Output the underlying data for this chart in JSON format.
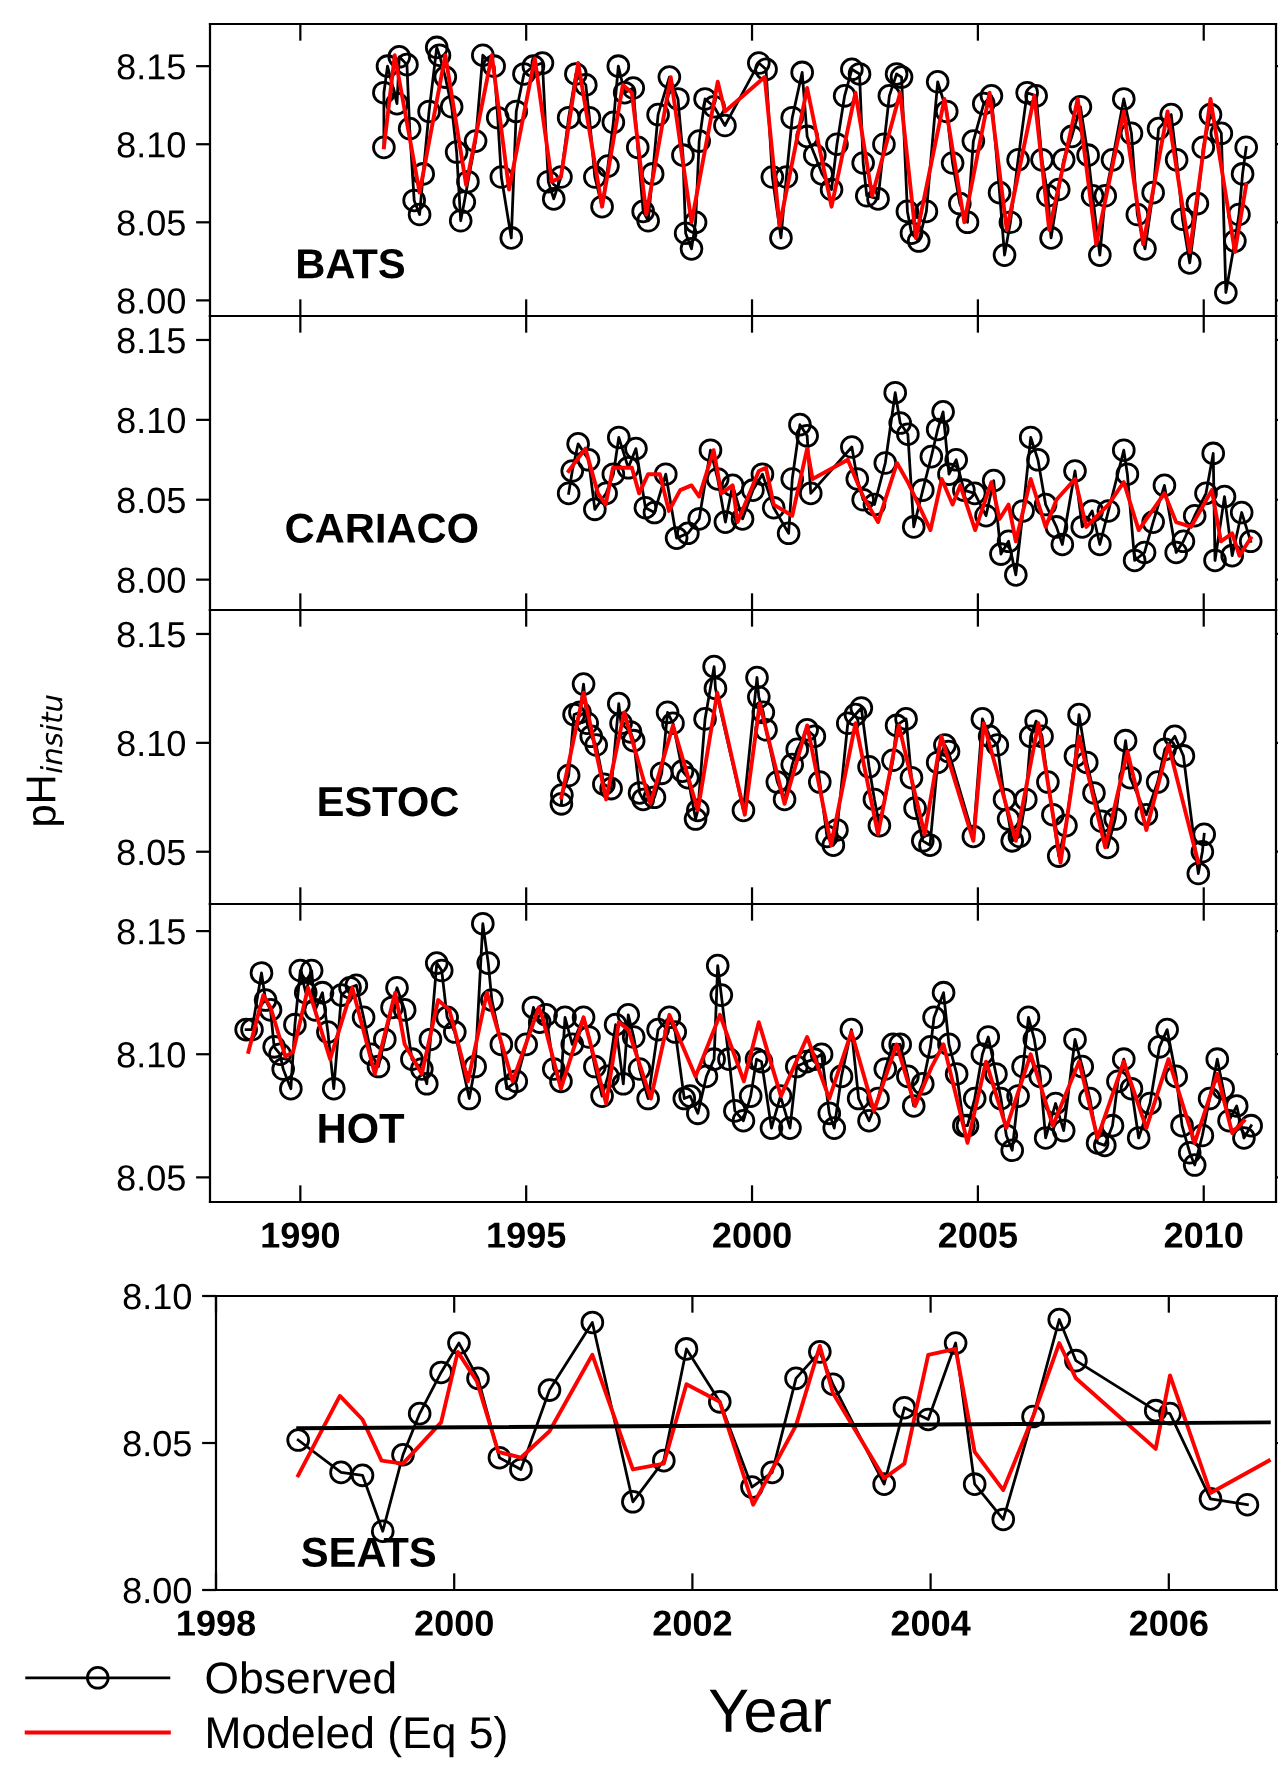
{
  "chart_data": [
    {
      "type": "line",
      "annotations": [
        "BATS"
      ],
      "xlim": [
        1988,
        2011.6
      ],
      "xticks": [
        1990,
        1995,
        2000,
        2005,
        2010
      ],
      "ylim": [
        7.99,
        8.177
      ],
      "yticks": [
        {
          "value": 8.0,
          "label": "8.00"
        },
        {
          "value": 8.05,
          "label": "8.05"
        },
        {
          "value": 8.1,
          "label": "8.10"
        },
        {
          "value": 8.15,
          "label": "8.15"
        }
      ],
      "tick_labels": "y",
      "series": [
        {
          "color": "#000000",
          "marker": "circle",
          "x": [
            1991.85,
            1991.85,
            1991.93,
            1992.14,
            1992.19,
            1992.36,
            1992.42,
            1992.52,
            1992.64,
            1992.72,
            1992.85,
            1993.02,
            1993.08,
            1993.21,
            1993.35,
            1993.46,
            1993.55,
            1993.63,
            1993.71,
            1993.88,
            1994.04,
            1994.29,
            1994.37,
            1994.45,
            1994.67,
            1994.78,
            1994.95,
            1995.16,
            1995.36,
            1995.49,
            1995.61,
            1995.77,
            1995.94,
            1996.1,
            1996.32,
            1996.4,
            1996.52,
            1996.68,
            1996.81,
            1996.93,
            1997.04,
            1997.18,
            1997.37,
            1997.47,
            1997.59,
            1997.7,
            1997.8,
            1997.92,
            1998.17,
            1998.36,
            1998.47,
            1998.53,
            1998.66,
            1998.75,
            1998.83,
            1998.96,
            1999.16,
            1999.4,
            2000.15,
            2000.31,
            2000.45,
            2000.64,
            2000.76,
            2000.89,
            2001.11,
            2001.22,
            2001.39,
            2001.55,
            2001.76,
            2001.88,
            2002.05,
            2002.21,
            2002.38,
            2002.46,
            2002.54,
            2002.79,
            2002.92,
            2003.04,
            2003.2,
            2003.31,
            2003.44,
            2003.53,
            2003.69,
            2003.86,
            2004.11,
            2004.31,
            2004.44,
            2004.6,
            2004.77,
            2004.9,
            2005.13,
            2005.3,
            2005.48,
            2005.59,
            2005.72,
            2005.89,
            2006.09,
            2006.29,
            2006.42,
            2006.55,
            2006.62,
            2006.79,
            2006.9,
            2007.08,
            2007.27,
            2007.44,
            2007.54,
            2007.7,
            2007.82,
            2007.98,
            2008.23,
            2008.4,
            2008.53,
            2008.7,
            2008.88,
            2009.0,
            2009.28,
            2009.4,
            2009.53,
            2009.69,
            2009.86,
            2009.99,
            2010.15,
            2010.39,
            2010.49,
            2010.69,
            2010.78,
            2010.86,
            2010.94
          ],
          "values": [
            8.098,
            8.133,
            8.15,
            8.126,
            8.156,
            8.151,
            8.11,
            8.064,
            8.055,
            8.081,
            8.121,
            8.162,
            8.157,
            8.143,
            8.124,
            8.095,
            8.051,
            8.063,
            8.076,
            8.102,
            8.157,
            8.15,
            8.117,
            8.079,
            8.04,
            8.121,
            8.145,
            8.15,
            8.152,
            8.076,
            8.065,
            8.079,
            8.117,
            8.145,
            8.138,
            8.117,
            8.079,
            8.06,
            8.086,
            8.114,
            8.15,
            8.133,
            8.136,
            8.098,
            8.057,
            8.051,
            8.081,
            8.119,
            8.143,
            8.129,
            8.093,
            8.043,
            8.033,
            8.05,
            8.102,
            8.129,
            8.124,
            8.112,
            8.152,
            8.148,
            8.079,
            8.04,
            8.079,
            8.117,
            8.146,
            8.105,
            8.093,
            8.081,
            8.071,
            8.1,
            8.131,
            8.148,
            8.145,
            8.088,
            8.067,
            8.065,
            8.1,
            8.131,
            8.145,
            8.143,
            8.057,
            8.043,
            8.038,
            8.057,
            8.14,
            8.121,
            8.088,
            8.062,
            8.05,
            8.102,
            8.126,
            8.131,
            8.069,
            8.029,
            8.05,
            8.09,
            8.133,
            8.131,
            8.09,
            8.067,
            8.04,
            8.071,
            8.09,
            8.105,
            8.124,
            8.093,
            8.067,
            8.029,
            8.067,
            8.09,
            8.129,
            8.107,
            8.055,
            8.033,
            8.069,
            8.11,
            8.119,
            8.09,
            8.052,
            8.024,
            8.062,
            8.098,
            8.119,
            8.107,
            8.005,
            8.038,
            8.055,
            8.081,
            8.098
          ]
        },
        {
          "color": "#ff0000",
          "x": [
            1991.85,
            1992.09,
            1992.64,
            1993.21,
            1993.67,
            1994.24,
            1994.62,
            1995.19,
            1995.57,
            1995.77,
            1996.15,
            1996.68,
            1997.14,
            1997.34,
            1997.66,
            1998.2,
            1998.66,
            1999.24,
            1999.4,
            2000.28,
            2000.61,
            2001.22,
            2001.76,
            2002.29,
            2002.66,
            2003.28,
            2003.63,
            2004.26,
            2004.7,
            2005.26,
            2005.64,
            2006.25,
            2006.58,
            2007.21,
            2007.62,
            2008.23,
            2008.66,
            2009.2,
            2009.69,
            2010.15,
            2010.69,
            2010.94
          ],
          "values": [
            8.098,
            8.157,
            8.069,
            8.157,
            8.074,
            8.157,
            8.071,
            8.155,
            8.076,
            8.079,
            8.152,
            8.06,
            8.138,
            8.133,
            8.055,
            8.143,
            8.05,
            8.14,
            8.121,
            8.143,
            8.048,
            8.136,
            8.06,
            8.133,
            8.067,
            8.133,
            8.04,
            8.129,
            8.05,
            8.133,
            8.045,
            8.131,
            8.045,
            8.129,
            8.036,
            8.121,
            8.036,
            8.121,
            8.031,
            8.129,
            8.031,
            8.074
          ]
        }
      ]
    },
    {
      "type": "line",
      "annotations": [
        "CARIACO"
      ],
      "xlim": [
        1988,
        2011.6
      ],
      "xticks": [
        1990,
        1995,
        2000,
        2005,
        2010
      ],
      "ylim": [
        7.981,
        8.165
      ],
      "yticks": [
        {
          "value": 8.0,
          "label": "8.00"
        },
        {
          "value": 8.05,
          "label": "8.05"
        },
        {
          "value": 8.1,
          "label": "8.10"
        },
        {
          "value": 8.15,
          "label": "8.15"
        }
      ],
      "tick_labels": "y",
      "series": [
        {
          "color": "#000000",
          "marker": "circle",
          "x": [
            1995.94,
            1996.02,
            1996.15,
            1996.38,
            1996.52,
            1996.77,
            1996.93,
            1997.05,
            1997.26,
            1997.43,
            1997.64,
            1997.84,
            1998.09,
            1998.33,
            1998.58,
            1998.83,
            1999.08,
            1999.24,
            1999.41,
            1999.57,
            1999.79,
            2000.02,
            2000.23,
            2000.48,
            2000.81,
            2000.89,
            2001.06,
            2001.22,
            2001.3,
            2002.21,
            2002.33,
            2002.46,
            2002.71,
            2002.95,
            2003.17,
            2003.28,
            2003.45,
            2003.58,
            2003.78,
            2003.97,
            2004.11,
            2004.23,
            2004.36,
            2004.52,
            2004.69,
            2004.93,
            2005.18,
            2005.35,
            2005.51,
            2005.68,
            2005.84,
            2006.0,
            2006.17,
            2006.33,
            2006.5,
            2006.74,
            2006.87,
            2007.15,
            2007.31,
            2007.53,
            2007.7,
            2007.89,
            2008.23,
            2008.31,
            2008.47,
            2008.69,
            2008.88,
            2009.13,
            2009.39,
            2009.55,
            2009.8,
            2010.05,
            2010.21,
            2010.25,
            2010.46,
            2010.63,
            2010.84,
            2011.04
          ],
          "values": [
            8.054,
            8.068,
            8.085,
            8.075,
            8.044,
            8.054,
            8.066,
            8.089,
            8.07,
            8.082,
            8.045,
            8.042,
            8.066,
            8.026,
            8.029,
            8.038,
            8.081,
            8.063,
            8.036,
            8.059,
            8.038,
            8.056,
            8.066,
            8.045,
            8.029,
            8.063,
            8.097,
            8.09,
            8.054,
            8.083,
            8.063,
            8.05,
            8.047,
            8.073,
            8.117,
            8.098,
            8.091,
            8.033,
            8.056,
            8.077,
            8.094,
            8.105,
            8.066,
            8.075,
            8.056,
            8.054,
            8.04,
            8.062,
            8.016,
            8.024,
            8.003,
            8.043,
            8.089,
            8.075,
            8.047,
            8.033,
            8.022,
            8.068,
            8.033,
            8.043,
            8.022,
            8.043,
            8.081,
            8.066,
            8.012,
            8.017,
            8.036,
            8.059,
            8.017,
            8.024,
            8.04,
            8.054,
            8.079,
            8.012,
            8.052,
            8.015,
            8.042,
            8.024
          ]
        },
        {
          "color": "#ff0000",
          "x": [
            1995.94,
            1996.31,
            1996.59,
            1996.76,
            1996.92,
            1997.34,
            1997.5,
            1997.7,
            1997.96,
            1998.16,
            1998.41,
            1998.66,
            1998.83,
            1999.15,
            1999.32,
            1999.57,
            1999.68,
            2000.15,
            2000.31,
            2000.48,
            2000.89,
            2001.22,
            2001.34,
            2002.12,
            2002.46,
            2002.79,
            2003.21,
            2003.45,
            2003.95,
            2004.2,
            2004.44,
            2004.61,
            2004.94,
            2005.3,
            2005.48,
            2005.68,
            2005.84,
            2006.17,
            2006.5,
            2006.74,
            2007.15,
            2007.4,
            2007.89,
            2008.23,
            2008.56,
            2009.13,
            2009.39,
            2009.72,
            2010.18,
            2010.38,
            2010.63,
            2010.79,
            2011.04
          ],
          "values": [
            8.068,
            8.082,
            8.054,
            8.047,
            8.07,
            8.07,
            8.054,
            8.066,
            8.066,
            8.043,
            8.056,
            8.059,
            8.052,
            8.081,
            8.054,
            8.059,
            8.036,
            8.068,
            8.07,
            8.047,
            8.04,
            8.082,
            8.063,
            8.075,
            8.052,
            8.036,
            8.073,
            8.061,
            8.031,
            8.063,
            8.047,
            8.059,
            8.031,
            8.061,
            8.038,
            8.047,
            8.024,
            8.063,
            8.033,
            8.05,
            8.063,
            8.033,
            8.047,
            8.061,
            8.031,
            8.054,
            8.036,
            8.033,
            8.056,
            8.024,
            8.029,
            8.015,
            8.026
          ]
        }
      ]
    },
    {
      "type": "line",
      "annotations": [
        "ESTOC"
      ],
      "ylabel": "pH$_{insitu}$",
      "xlim": [
        1988,
        2011.6
      ],
      "xticks": [
        1990,
        1995,
        2000,
        2005,
        2010
      ],
      "ylim": [
        8.026,
        8.161
      ],
      "yticks": [
        {
          "value": 8.05,
          "label": "8.05"
        },
        {
          "value": 8.1,
          "label": "8.10"
        },
        {
          "value": 8.15,
          "label": "8.15"
        }
      ],
      "tick_labels": "y",
      "series": [
        {
          "color": "#000000",
          "marker": "circle",
          "x": [
            1995.78,
            1995.79,
            1995.94,
            1996.06,
            1996.19,
            1996.27,
            1996.35,
            1996.44,
            1996.55,
            1996.72,
            1996.88,
            1997.05,
            1997.1,
            1997.31,
            1997.38,
            1997.51,
            1997.59,
            1997.84,
            1998.0,
            1998.13,
            1998.25,
            1998.46,
            1998.58,
            1998.75,
            1998.8,
            1998.96,
            1999.16,
            1999.19,
            1999.81,
            2000.11,
            2000.15,
            2000.25,
            2000.31,
            2000.56,
            2000.72,
            2000.89,
            2001.0,
            2001.22,
            2001.38,
            2001.5,
            2001.66,
            2001.8,
            2001.88,
            2002.12,
            2002.29,
            2002.42,
            2002.59,
            2002.71,
            2002.82,
            2003.12,
            2003.2,
            2003.41,
            2003.53,
            2003.61,
            2003.78,
            2003.94,
            2004.11,
            2004.27,
            2004.35,
            2004.9,
            2005.1,
            2005.26,
            2005.43,
            2005.59,
            2005.68,
            2005.76,
            2005.92,
            2006.06,
            2006.17,
            2006.29,
            2006.42,
            2006.55,
            2006.66,
            2006.79,
            2006.95,
            2007.16,
            2007.24,
            2007.41,
            2007.57,
            2007.74,
            2007.87,
            2008.04,
            2008.27,
            2008.37,
            2008.73,
            2008.98,
            2009.14,
            2009.36,
            2009.55,
            2009.88,
            2009.97,
            2010.01
          ],
          "values": [
            8.072,
            8.076,
            8.085,
            8.113,
            8.114,
            8.127,
            8.109,
            8.103,
            8.099,
            8.081,
            8.079,
            8.118,
            8.109,
            8.105,
            8.101,
            8.077,
            8.074,
            8.075,
            8.086,
            8.114,
            8.109,
            8.087,
            8.084,
            8.065,
            8.069,
            8.111,
            8.135,
            8.125,
            8.069,
            8.13,
            8.121,
            8.114,
            8.106,
            8.082,
            8.074,
            8.09,
            8.097,
            8.106,
            8.103,
            8.082,
            8.057,
            8.053,
            8.06,
            8.109,
            8.113,
            8.116,
            8.089,
            8.074,
            8.062,
            8.092,
            8.108,
            8.111,
            8.084,
            8.07,
            8.055,
            8.053,
            8.091,
            8.099,
            8.096,
            8.057,
            8.111,
            8.103,
            8.099,
            8.074,
            8.065,
            8.055,
            8.057,
            8.074,
            8.103,
            8.11,
            8.103,
            8.082,
            8.067,
            8.048,
            8.062,
            8.094,
            8.113,
            8.091,
            8.077,
            8.064,
            8.052,
            8.065,
            8.101,
            8.084,
            8.067,
            8.082,
            8.097,
            8.103,
            8.094,
            8.04,
            8.05,
            8.058
          ]
        },
        {
          "color": "#ff0000",
          "x": [
            1995.78,
            1996.27,
            1996.77,
            1997.17,
            1997.75,
            1998.25,
            1998.8,
            1999.23,
            1999.84,
            2000.17,
            2000.72,
            2001.22,
            2001.75,
            2002.29,
            2002.79,
            2003.25,
            2003.82,
            2004.19,
            2004.9,
            2005.13,
            2005.84,
            2006.34,
            2006.83,
            2007.24,
            2007.82,
            2008.31,
            2008.73,
            2009.22,
            2009.88
          ],
          "values": [
            8.075,
            8.123,
            8.074,
            8.114,
            8.072,
            8.108,
            8.069,
            8.123,
            8.067,
            8.118,
            8.072,
            8.108,
            8.053,
            8.109,
            8.058,
            8.108,
            8.058,
            8.103,
            8.055,
            8.109,
            8.055,
            8.109,
            8.045,
            8.103,
            8.052,
            8.096,
            8.06,
            8.099,
            8.045
          ]
        }
      ]
    },
    {
      "type": "line",
      "annotations": [
        "HOT"
      ],
      "xlim": [
        1988,
        2011.6
      ],
      "xticks": [
        1990,
        1995,
        2000,
        2005,
        2010
      ],
      "ylim": [
        8.04,
        8.161
      ],
      "yticks": [
        {
          "value": 8.05,
          "label": "8.05"
        },
        {
          "value": 8.1,
          "label": "8.10"
        },
        {
          "value": 8.15,
          "label": "8.15"
        }
      ],
      "series": [
        {
          "color": "#000000",
          "marker": "circle",
          "x": [
            1988.8,
            1988.93,
            1989.14,
            1989.23,
            1989.34,
            1989.42,
            1989.55,
            1989.62,
            1989.79,
            1989.88,
            1990.0,
            1990.12,
            1990.25,
            1990.33,
            1990.49,
            1990.61,
            1990.74,
            1990.91,
            1991.1,
            1991.24,
            1991.4,
            1991.57,
            1991.73,
            1991.87,
            1992.03,
            1992.14,
            1992.31,
            1992.47,
            1992.69,
            1992.8,
            1992.88,
            1993.02,
            1993.13,
            1993.25,
            1993.42,
            1993.74,
            1993.87,
            1994.04,
            1994.16,
            1994.24,
            1994.45,
            1994.57,
            1994.78,
            1995.0,
            1995.16,
            1995.3,
            1995.44,
            1995.61,
            1995.77,
            1995.86,
            1996.02,
            1996.27,
            1996.39,
            1996.52,
            1996.68,
            1996.81,
            1996.98,
            1997.15,
            1997.26,
            1997.38,
            1997.51,
            1997.7,
            1997.92,
            1998.17,
            1998.3,
            1998.5,
            1998.63,
            1998.8,
            1998.99,
            1999.16,
            1999.24,
            1999.32,
            1999.49,
            1999.62,
            1999.81,
            1999.97,
            2000.1,
            2000.21,
            2000.43,
            2000.63,
            2000.84,
            2000.99,
            2001.21,
            2001.38,
            2001.54,
            2001.71,
            2001.82,
            2001.98,
            2002.2,
            2002.36,
            2002.59,
            2002.79,
            2002.95,
            2003.12,
            2003.28,
            2003.45,
            2003.58,
            2003.78,
            2003.95,
            2004.03,
            2004.24,
            2004.36,
            2004.53,
            2004.69,
            2004.77,
            2004.93,
            2005.1,
            2005.23,
            2005.4,
            2005.51,
            2005.63,
            2005.76,
            2005.89,
            2006.0,
            2006.12,
            2006.25,
            2006.38,
            2006.5,
            2006.72,
            2006.9,
            2007.15,
            2007.31,
            2007.48,
            2007.65,
            2007.81,
            2007.98,
            2008.1,
            2008.23,
            2008.4,
            2008.56,
            2008.81,
            2009.02,
            2009.19,
            2009.39,
            2009.52,
            2009.69,
            2009.8,
            2009.97,
            2010.13,
            2010.3,
            2010.43,
            2010.56,
            2010.73,
            2010.89,
            2011.05
          ],
          "values": [
            8.11,
            8.11,
            8.133,
            8.122,
            8.118,
            8.103,
            8.1,
            8.094,
            8.086,
            8.112,
            8.134,
            8.125,
            8.134,
            8.118,
            8.125,
            8.109,
            8.086,
            8.124,
            8.127,
            8.128,
            8.115,
            8.1,
            8.095,
            8.106,
            8.119,
            8.127,
            8.118,
            8.098,
            8.094,
            8.088,
            8.106,
            8.137,
            8.134,
            8.115,
            8.109,
            8.082,
            8.095,
            8.153,
            8.137,
            8.122,
            8.104,
            8.086,
            8.089,
            8.104,
            8.119,
            8.113,
            8.116,
            8.094,
            8.089,
            8.115,
            8.104,
            8.115,
            8.107,
            8.095,
            8.083,
            8.091,
            8.112,
            8.088,
            8.116,
            8.107,
            8.094,
            8.082,
            8.11,
            8.115,
            8.109,
            8.082,
            8.083,
            8.076,
            8.091,
            8.098,
            8.136,
            8.124,
            8.098,
            8.077,
            8.073,
            8.083,
            8.098,
            8.097,
            8.07,
            8.083,
            8.07,
            8.095,
            8.097,
            8.098,
            8.1,
            8.076,
            8.07,
            8.091,
            8.11,
            8.082,
            8.073,
            8.082,
            8.094,
            8.104,
            8.104,
            8.091,
            8.079,
            8.088,
            8.103,
            8.115,
            8.125,
            8.104,
            8.092,
            8.071,
            8.071,
            8.082,
            8.1,
            8.107,
            8.092,
            8.082,
            8.067,
            8.061,
            8.083,
            8.095,
            8.115,
            8.106,
            8.091,
            8.066,
            8.08,
            8.069,
            8.106,
            8.095,
            8.082,
            8.064,
            8.063,
            8.071,
            8.089,
            8.098,
            8.086,
            8.066,
            8.08,
            8.103,
            8.11,
            8.091,
            8.071,
            8.06,
            8.055,
            8.067,
            8.082,
            8.098,
            8.086,
            8.073,
            8.079,
            8.066,
            8.071
          ]
        },
        {
          "color": "#ff0000",
          "x": [
            1988.85,
            1989.18,
            1989.34,
            1989.67,
            1989.84,
            1990.17,
            1990.66,
            1991.15,
            1991.65,
            1992.1,
            1992.31,
            1992.69,
            1993.05,
            1993.3,
            1993.71,
            1994.13,
            1994.7,
            1995.28,
            1995.36,
            1995.77,
            1996.27,
            1996.77,
            1997.05,
            1997.26,
            1997.76,
            1998.17,
            1998.75,
            1999.29,
            1999.82,
            2000.15,
            2000.64,
            2001.22,
            2001.71,
            2002.2,
            2002.7,
            2003.2,
            2003.61,
            2003.98,
            2004.24,
            2004.77,
            2005.18,
            2005.63,
            2006.17,
            2006.66,
            2007.24,
            2007.65,
            2008.23,
            2008.73,
            2009.22,
            2009.8,
            2010.3,
            2010.63,
            2010.89
          ],
          "values": [
            8.101,
            8.124,
            8.119,
            8.099,
            8.101,
            8.127,
            8.098,
            8.127,
            8.092,
            8.125,
            8.104,
            8.092,
            8.122,
            8.118,
            8.089,
            8.125,
            8.089,
            8.119,
            8.115,
            8.086,
            8.115,
            8.08,
            8.113,
            8.11,
            8.082,
            8.116,
            8.091,
            8.116,
            8.089,
            8.113,
            8.083,
            8.107,
            8.082,
            8.109,
            8.077,
            8.104,
            8.079,
            8.095,
            8.104,
            8.064,
            8.097,
            8.07,
            8.1,
            8.071,
            8.097,
            8.066,
            8.097,
            8.07,
            8.098,
            8.064,
            8.092,
            8.068,
            8.073
          ]
        }
      ]
    },
    {
      "type": "line",
      "annotations": [
        "SEATS"
      ],
      "xlabel": "Year",
      "legend": "bottom left",
      "xlim": [
        1998,
        2006.9
      ],
      "xticks": [
        1998,
        2000,
        2002,
        2004,
        2006
      ],
      "ylim": [
        8.0,
        8.1
      ],
      "yticks": [
        {
          "value": 8.0,
          "label": "8.00"
        },
        {
          "value": 8.05,
          "label": "8.05"
        },
        {
          "value": 8.1,
          "label": "8.10"
        }
      ],
      "series": [
        {
          "name": "Observed",
          "color": "#000000",
          "marker": "circle",
          "x": [
            1998.69,
            1999.05,
            1999.23,
            1999.4,
            1999.57,
            1999.71,
            1999.89,
            2000.04,
            2000.2,
            2000.38,
            2000.56,
            2000.8,
            2001.16,
            2001.5,
            2001.76,
            2001.95,
            2002.23,
            2002.5,
            2002.67,
            2002.87,
            2003.07,
            2003.18,
            2003.61,
            2003.78,
            2003.98,
            2004.21,
            2004.37,
            2004.61,
            2004.86,
            2005.08,
            2005.22,
            2005.89,
            2006.01,
            2006.35,
            2006.66
          ],
          "values": [
            8.051,
            8.04,
            8.039,
            8.02,
            8.046,
            8.06,
            8.074,
            8.084,
            8.072,
            8.045,
            8.041,
            8.068,
            8.091,
            8.03,
            8.044,
            8.082,
            8.064,
            8.035,
            8.04,
            8.072,
            8.081,
            8.07,
            8.036,
            8.062,
            8.058,
            8.084,
            8.036,
            8.024,
            8.059,
            8.092,
            8.078,
            8.061,
            8.06,
            8.031,
            8.029
          ]
        },
        {
          "name": "Modeled (Eq 5)",
          "color": "#ff0000",
          "x": [
            1998.69,
            1999.04,
            1999.23,
            1999.39,
            1999.57,
            1999.89,
            2000.03,
            2000.19,
            2000.37,
            2000.56,
            2000.8,
            2001.16,
            2001.5,
            2001.76,
            2001.95,
            2002.23,
            2002.51,
            2002.67,
            2002.87,
            2003.07,
            2003.18,
            2003.61,
            2003.78,
            2003.98,
            2004.21,
            2004.37,
            2004.61,
            2004.86,
            2005.08,
            2005.22,
            2005.89,
            2006.01,
            2006.35,
            2006.84
          ],
          "values": [
            8.039,
            8.066,
            8.058,
            8.044,
            8.043,
            8.057,
            8.081,
            8.071,
            8.047,
            8.045,
            8.054,
            8.08,
            8.041,
            8.043,
            8.07,
            8.064,
            8.029,
            8.041,
            8.056,
            8.083,
            8.067,
            8.038,
            8.043,
            8.08,
            8.082,
            8.047,
            8.034,
            8.059,
            8.084,
            8.072,
            8.048,
            8.073,
            8.033,
            8.044
          ]
        },
        {
          "color": "#000000",
          "x": [
            1998.69,
            2006.84
          ],
          "values": [
            8.055,
            8.057
          ]
        }
      ]
    }
  ]
}
